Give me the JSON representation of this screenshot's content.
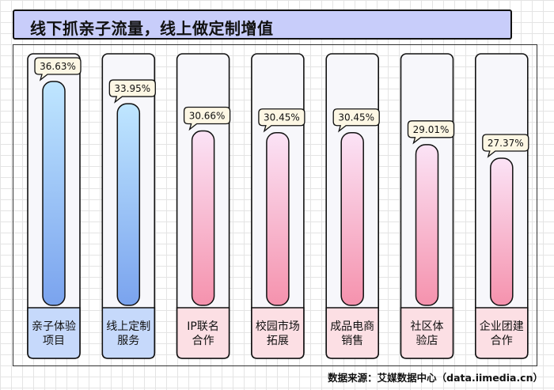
{
  "header": {
    "title": "线下抓亲子流量，线上做定制增值"
  },
  "footer": {
    "source": "数据来源：艾媒数据中心（data.iimedia.cn）"
  },
  "chart_data": {
    "type": "bar",
    "title": "线下抓亲子流量，线上做定制增值",
    "categories": [
      [
        "亲子体验",
        "项目"
      ],
      [
        "线上定制",
        "服务"
      ],
      [
        "IP联名",
        "合作"
      ],
      [
        "校园市场",
        "拓展"
      ],
      [
        "成品电商",
        "销售"
      ],
      [
        "社区体",
        "验店"
      ],
      [
        "企业团建",
        "合作"
      ]
    ],
    "values": [
      36.63,
      33.95,
      30.66,
      30.45,
      30.45,
      29.01,
      27.37
    ],
    "value_labels": [
      "36.63%",
      "33.95%",
      "30.66%",
      "30.45%",
      "30.45%",
      "29.01%",
      "27.37%"
    ],
    "unit": "%",
    "groups": [
      "blue",
      "blue",
      "pink",
      "pink",
      "pink",
      "pink",
      "pink"
    ],
    "colors": {
      "blue_bar_top": "#bfe6ff",
      "blue_bar_bottom": "#7aa3ee",
      "blue_label_bg": "#c6d9fb",
      "pink_bar_top": "#fbe3f6",
      "pink_bar_bottom": "#f592ad",
      "pink_label_bg": "#fcdfe4",
      "bubble_bg": "#fdf7e4",
      "card_bg": "#f7f7fb",
      "title_bg": "#c8cdfa"
    },
    "grid": true
  }
}
